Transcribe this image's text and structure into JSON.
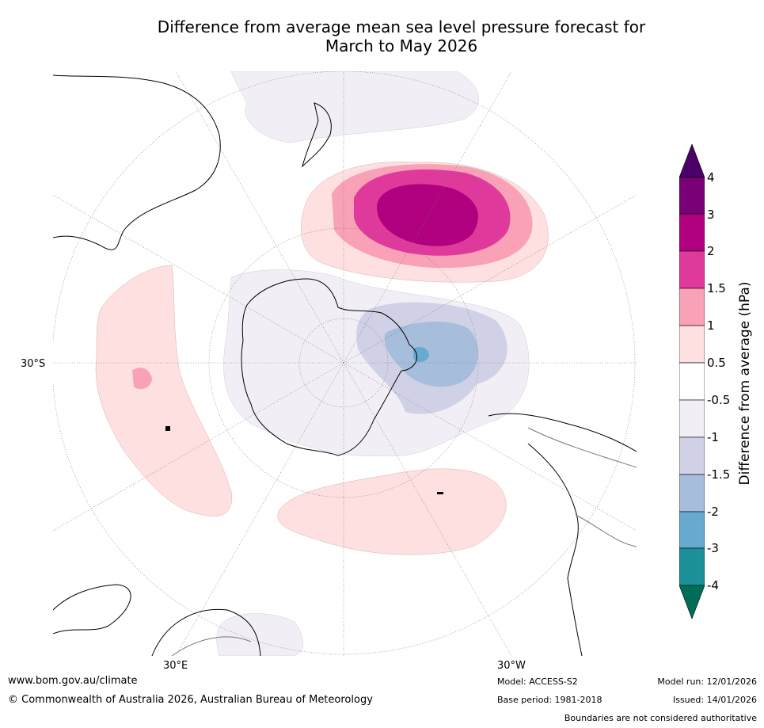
{
  "title_line1": "Difference from average mean sea level pressure forecast for",
  "title_line2": "March to May 2026",
  "map": {
    "projection": "south-polar-stereographic",
    "lat_label": "30°S",
    "lon_labels": [
      "30°E",
      "30°W"
    ]
  },
  "colorbar": {
    "label": "Difference from average (hPa)",
    "ticks": [
      "4",
      "3",
      "2",
      "1.5",
      "1",
      "0.5",
      "-0.5",
      "-1",
      "-1.5",
      "-2",
      "-3",
      "-4"
    ],
    "colors": {
      "above_4": "#4b0068",
      "3_to_4": "#7a0077",
      "2_to_3": "#b0007f",
      "1.5_to_2": "#df3a9b",
      "1_to_1.5": "#f9a1b6",
      "0.5_to_1": "#fde0df",
      "neutral": "#ffffff",
      "-1_to_-0.5": "#f2eef5",
      "-1.5_to_-1": "#d0d1e6",
      "-2_to_-1.5": "#a6bddb",
      "-3_to_-2": "#67a9cf",
      "-4_to_-3": "#1c9099",
      "below_-4": "#016c59"
    }
  },
  "footer": {
    "url": "www.bom.gov.au/climate",
    "copyright": "© Commonwealth of Australia 2026, Australian Bureau of Meteorology",
    "model": "Model: ACCESS-S2",
    "base_period": "Base period: 1981-2018",
    "model_run": "Model run: 12/01/2026",
    "issued": "Issued: 14/01/2026",
    "disclaimer": "Boundaries are not considered authoritative"
  }
}
